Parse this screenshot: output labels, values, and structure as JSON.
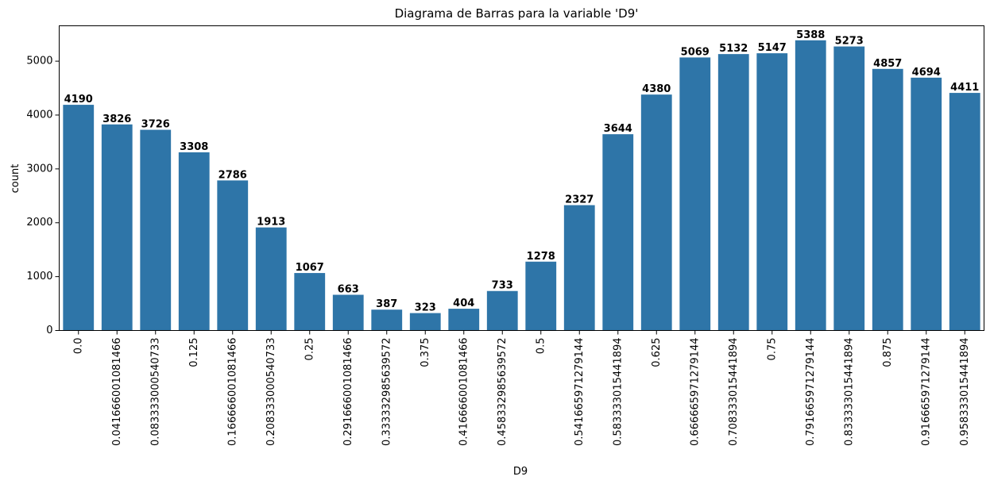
{
  "chart_data": {
    "type": "bar",
    "title": "Diagrama de Barras para la variable   'D9'",
    "xlabel": "D9",
    "ylabel": "count",
    "categories": [
      "0.0",
      "0.041666001081466",
      "0.083333000540733",
      "0.125",
      "0.166666001081466",
      "0.208333000540733",
      "0.25",
      "0.291666001081466",
      "0.333332985639572",
      "0.375",
      "0.416666001081466",
      "0.458332985639572",
      "0.5",
      "0.541665971279144",
      "0.583333015441894",
      "0.625",
      "0.666665971279144",
      "0.708333015441894",
      "0.75",
      "0.791665971279144",
      "0.833333015441894",
      "0.875",
      "0.916665971279144",
      "0.958333015441894"
    ],
    "values": [
      4190,
      3826,
      3726,
      3308,
      2786,
      1913,
      1067,
      663,
      387,
      323,
      404,
      733,
      1278,
      2327,
      3644,
      4380,
      5069,
      5132,
      5147,
      5388,
      5273,
      4857,
      4694,
      4411
    ],
    "ylim": [
      0,
      5657
    ],
    "yticks": [
      0,
      1000,
      2000,
      3000,
      4000,
      5000
    ],
    "bar_color": "#2e75a8",
    "grid": false,
    "legend": "none"
  }
}
